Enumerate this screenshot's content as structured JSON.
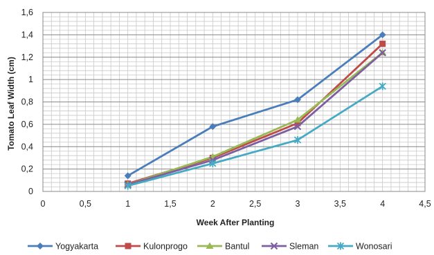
{
  "chart_data": {
    "type": "line",
    "xlabel": "Week After Planting",
    "ylabel": "Tomato Leaf Width (cm)",
    "xlim": [
      0,
      4.5
    ],
    "ylim": [
      0,
      1.6
    ],
    "x_ticks": [
      "0",
      "0,5",
      "1",
      "1,5",
      "2",
      "2,5",
      "3",
      "3,5",
      "4",
      "4,5"
    ],
    "y_ticks": [
      "0",
      "0,2",
      "0,4",
      "0,6",
      "0,8",
      "1",
      "1,2",
      "1,4",
      "1,6"
    ],
    "grid": true,
    "legend_position": "bottom",
    "x": [
      1,
      2,
      3,
      4
    ],
    "series": [
      {
        "name": "Yogyakarta",
        "values": [
          0.14,
          0.58,
          0.82,
          1.4
        ],
        "color": "#4a7ebb",
        "marker": "diamond"
      },
      {
        "name": "Kulonprogo",
        "values": [
          0.07,
          0.3,
          0.61,
          1.32
        ],
        "color": "#be4b48",
        "marker": "square"
      },
      {
        "name": "Bantul",
        "values": [
          0.06,
          0.31,
          0.64,
          1.24
        ],
        "color": "#98b954",
        "marker": "triangle"
      },
      {
        "name": "Sleman",
        "values": [
          0.06,
          0.28,
          0.58,
          1.24
        ],
        "color": "#7d5fa0",
        "marker": "x"
      },
      {
        "name": "Wonosari",
        "values": [
          0.05,
          0.25,
          0.46,
          0.94
        ],
        "color": "#46aac5",
        "marker": "star"
      }
    ]
  }
}
